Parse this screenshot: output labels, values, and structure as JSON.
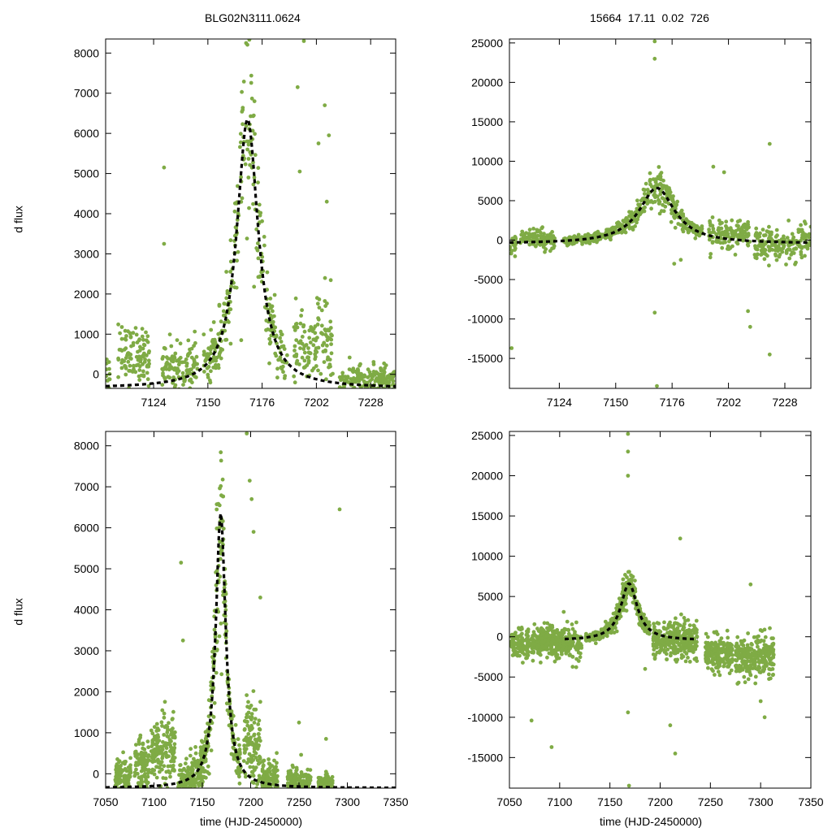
{
  "figure": {
    "title_left": "BLG02N3111.0624",
    "title_right": "15664  17.11  0.02  726",
    "ylabel_top": "d flux",
    "ylabel_bottom": "d flux",
    "xlabel_left": "time (HJD-2450000)",
    "xlabel_right": "time (HJD-2450000)",
    "colors": {
      "points": "#7fab45",
      "fit": "#000000",
      "axes": "#000000"
    }
  },
  "chart_data": [
    {
      "id": "top-left",
      "type": "scatter",
      "title": "BLG02N3111.0624",
      "xlabel": "",
      "ylabel": "d flux",
      "xlim": [
        7101,
        7240
      ],
      "ylim": [
        -350,
        8350
      ],
      "xticks": [
        7124,
        7150,
        7176,
        7202,
        7228
      ],
      "yticks": [
        0,
        1000,
        2000,
        3000,
        4000,
        5000,
        6000,
        7000,
        8000
      ],
      "model": {
        "t0": 7169,
        "peak": 6350,
        "base": -350,
        "tau": 6.2,
        "x_range": [
          7101,
          7240
        ]
      },
      "segments": [
        [
          7101,
          7103,
          0,
          300
        ],
        [
          7107,
          7122,
          500,
          350
        ],
        [
          7128,
          7145,
          200,
          300
        ],
        [
          7148,
          7188,
          0,
          0
        ],
        [
          7191,
          7202,
          600,
          420
        ],
        [
          7202,
          7210,
          900,
          600
        ],
        [
          7213,
          7240,
          -150,
          180
        ]
      ],
      "outliers": [
        [
          7129,
          5150
        ],
        [
          7129,
          3250
        ],
        [
          7193,
          7150
        ],
        [
          7194,
          5050
        ],
        [
          7203,
          5750
        ],
        [
          7206,
          6700
        ],
        [
          7208,
          5950
        ],
        [
          7207,
          4300
        ],
        [
          7196,
          8300
        ],
        [
          7166,
          850
        ],
        [
          7160,
          1300
        ]
      ]
    },
    {
      "id": "top-right",
      "type": "scatter",
      "title": "15664  17.11  0.02  726",
      "xlabel": "",
      "ylabel": "",
      "xlim": [
        7101,
        7240
      ],
      "ylim": [
        -18800,
        25500
      ],
      "xticks": [
        7124,
        7150,
        7176,
        7202,
        7228
      ],
      "yticks": [
        -15000,
        -10000,
        -5000,
        0,
        5000,
        10000,
        15000,
        20000,
        25000
      ],
      "model": {
        "t0": 7169,
        "peak": 6600,
        "base": -450,
        "tau": 10,
        "x_range": [
          7101,
          7240
        ]
      },
      "segments": [
        [
          7101,
          7104,
          -500,
          900
        ],
        [
          7106,
          7122,
          200,
          600
        ],
        [
          7126,
          7190,
          0,
          0
        ],
        [
          7193,
          7212,
          800,
          900
        ],
        [
          7214,
          7240,
          -500,
          1100
        ]
      ],
      "outliers": [
        [
          7102,
          -13700
        ],
        [
          7168,
          25200
        ],
        [
          7168,
          23000
        ],
        [
          7168,
          -9200
        ],
        [
          7169,
          -18500
        ],
        [
          7180,
          -2500
        ],
        [
          7195,
          9300
        ],
        [
          7200,
          8600
        ],
        [
          7221,
          12200
        ],
        [
          7211,
          -9000
        ],
        [
          7212,
          -11000
        ],
        [
          7221,
          -14500
        ],
        [
          7177,
          -3000
        ]
      ]
    },
    {
      "id": "bottom-left",
      "type": "scatter",
      "title": "",
      "xlabel": "time (HJD-2450000)",
      "ylabel": "d flux",
      "xlim": [
        7050,
        7350
      ],
      "ylim": [
        -350,
        8350
      ],
      "xticks": [
        7050,
        7100,
        7150,
        7200,
        7250,
        7300,
        7350
      ],
      "yticks": [
        0,
        1000,
        2000,
        3000,
        4000,
        5000,
        6000,
        7000,
        8000
      ],
      "model": {
        "t0": 7169,
        "peak": 6350,
        "base": -350,
        "tau": 6.2,
        "x_range": [
          7050,
          7350
        ]
      },
      "segments": [
        [
          7060,
          7076,
          -100,
          250
        ],
        [
          7080,
          7095,
          200,
          350
        ],
        [
          7097,
          7122,
          500,
          400
        ],
        [
          7125,
          7190,
          0,
          0
        ],
        [
          7193,
          7210,
          700,
          500
        ],
        [
          7212,
          7228,
          -150,
          250
        ],
        [
          7238,
          7262,
          -250,
          200
        ],
        [
          7270,
          7285,
          -250,
          100
        ]
      ],
      "outliers": [
        [
          7128,
          5150
        ],
        [
          7130,
          3250
        ],
        [
          7196,
          8300
        ],
        [
          7199,
          7150
        ],
        [
          7201,
          6700
        ],
        [
          7203,
          5900
        ],
        [
          7210,
          4300
        ],
        [
          7292,
          6450
        ],
        [
          7278,
          850
        ],
        [
          7250,
          1250
        ],
        [
          7278,
          50
        ]
      ]
    },
    {
      "id": "bottom-right",
      "type": "scatter",
      "title": "",
      "xlabel": "time (HJD-2450000)",
      "ylabel": "",
      "xlim": [
        7050,
        7350
      ],
      "ylim": [
        -18800,
        25500
      ],
      "xticks": [
        7050,
        7100,
        7150,
        7200,
        7250,
        7300,
        7350
      ],
      "yticks": [
        -15000,
        -10000,
        -5000,
        0,
        5000,
        10000,
        15000,
        20000,
        25000
      ],
      "model": {
        "t0": 7169,
        "peak": 6600,
        "base": -450,
        "tau": 10,
        "x_range": [
          7105,
          7237
        ]
      },
      "segments": [
        [
          7052,
          7070,
          -1000,
          900
        ],
        [
          7072,
          7122,
          -700,
          1000
        ],
        [
          7126,
          7190,
          0,
          0
        ],
        [
          7193,
          7237,
          -500,
          1100
        ],
        [
          7245,
          7272,
          -2000,
          1000
        ],
        [
          7275,
          7313,
          -2500,
          1300
        ]
      ],
      "outliers": [
        [
          7092,
          -13700
        ],
        [
          7072,
          -10400
        ],
        [
          7168,
          25200
        ],
        [
          7168,
          23000
        ],
        [
          7168,
          20000
        ],
        [
          7168,
          -9400
        ],
        [
          7169,
          -18500
        ],
        [
          7220,
          12200
        ],
        [
          7215,
          -14500
        ],
        [
          7210,
          -11000
        ],
        [
          7290,
          6500
        ],
        [
          7300,
          -8000
        ],
        [
          7304,
          -10000
        ],
        [
          7185,
          -4000
        ],
        [
          7229,
          -1500
        ]
      ]
    }
  ]
}
